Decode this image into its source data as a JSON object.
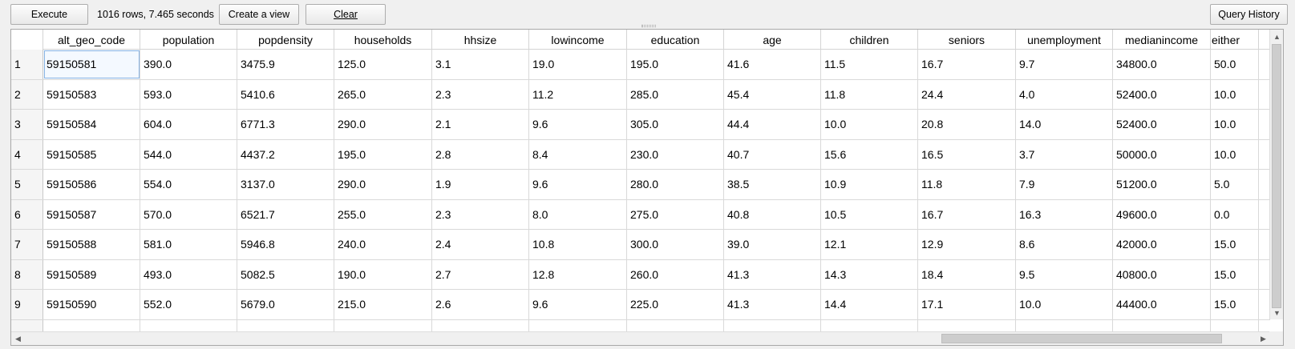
{
  "toolbar": {
    "execute_label": "Execute",
    "status_text": "1016 rows, 7.465 seconds",
    "create_view_label": "Create a view",
    "clear_label": "Clear",
    "query_history_label": "Query History"
  },
  "table": {
    "columns": [
      "alt_geo_code",
      "population",
      "popdensity",
      "households",
      "hhsize",
      "lowincome",
      "education",
      "age",
      "children",
      "seniors",
      "unemployment",
      "medianincome",
      "either"
    ],
    "rows": [
      {
        "num": "1",
        "cells": [
          "59150581",
          "390.0",
          "3475.9",
          "125.0",
          "3.1",
          "19.0",
          "195.0",
          "41.6",
          "11.5",
          "16.7",
          "9.7",
          "34800.0",
          "50.0"
        ]
      },
      {
        "num": "2",
        "cells": [
          "59150583",
          "593.0",
          "5410.6",
          "265.0",
          "2.3",
          "11.2",
          "285.0",
          "45.4",
          "11.8",
          "24.4",
          "4.0",
          "52400.0",
          "10.0"
        ]
      },
      {
        "num": "3",
        "cells": [
          "59150584",
          "604.0",
          "6771.3",
          "290.0",
          "2.1",
          "9.6",
          "305.0",
          "44.4",
          "10.0",
          "20.8",
          "14.0",
          "52400.0",
          "10.0"
        ]
      },
      {
        "num": "4",
        "cells": [
          "59150585",
          "544.0",
          "4437.2",
          "195.0",
          "2.8",
          "8.4",
          "230.0",
          "40.7",
          "15.6",
          "16.5",
          "3.7",
          "50000.0",
          "10.0"
        ]
      },
      {
        "num": "5",
        "cells": [
          "59150586",
          "554.0",
          "3137.0",
          "290.0",
          "1.9",
          "9.6",
          "280.0",
          "38.5",
          "10.9",
          "11.8",
          "7.9",
          "51200.0",
          "5.0"
        ]
      },
      {
        "num": "6",
        "cells": [
          "59150587",
          "570.0",
          "6521.7",
          "255.0",
          "2.3",
          "8.0",
          "275.0",
          "40.8",
          "10.5",
          "16.7",
          "16.3",
          "49600.0",
          "0.0"
        ]
      },
      {
        "num": "7",
        "cells": [
          "59150588",
          "581.0",
          "5946.8",
          "240.0",
          "2.4",
          "10.8",
          "300.0",
          "39.0",
          "12.1",
          "12.9",
          "8.6",
          "42000.0",
          "15.0"
        ]
      },
      {
        "num": "8",
        "cells": [
          "59150589",
          "493.0",
          "5082.5",
          "190.0",
          "2.7",
          "12.8",
          "260.0",
          "41.3",
          "14.3",
          "18.4",
          "9.5",
          "40800.0",
          "15.0"
        ]
      },
      {
        "num": "9",
        "cells": [
          "59150590",
          "552.0",
          "5679.0",
          "215.0",
          "2.6",
          "9.6",
          "225.0",
          "41.3",
          "14.4",
          "17.1",
          "10.0",
          "44400.0",
          "15.0"
        ]
      }
    ]
  },
  "icons": {
    "scroll_up": "▲",
    "scroll_down": "▼",
    "scroll_left": "◀",
    "scroll_right": "▶"
  }
}
